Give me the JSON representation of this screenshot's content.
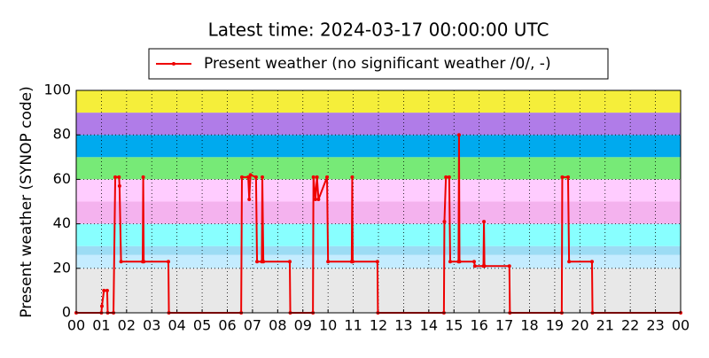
{
  "chart_data": {
    "type": "line",
    "title": "Latest time: 2024-03-17 00:00:00 UTC",
    "ylabel": "Present weather (SYNOP code)",
    "legend": "upper center",
    "grid": true,
    "xlim": [
      0,
      24
    ],
    "ylim": [
      0,
      100
    ],
    "xticks": [
      {
        "value": 0,
        "label": "00"
      },
      {
        "value": 1,
        "label": "01"
      },
      {
        "value": 2,
        "label": "02"
      },
      {
        "value": 3,
        "label": "03"
      },
      {
        "value": 4,
        "label": "04"
      },
      {
        "value": 5,
        "label": "05"
      },
      {
        "value": 6,
        "label": "06"
      },
      {
        "value": 7,
        "label": "07"
      },
      {
        "value": 8,
        "label": "08"
      },
      {
        "value": 9,
        "label": "09"
      },
      {
        "value": 10,
        "label": "10"
      },
      {
        "value": 11,
        "label": "11"
      },
      {
        "value": 12,
        "label": "12"
      },
      {
        "value": 13,
        "label": "13"
      },
      {
        "value": 14,
        "label": "14"
      },
      {
        "value": 15,
        "label": "15"
      },
      {
        "value": 16,
        "label": "16"
      },
      {
        "value": 17,
        "label": "17"
      },
      {
        "value": 18,
        "label": "18"
      },
      {
        "value": 19,
        "label": "19"
      },
      {
        "value": 20,
        "label": "20"
      },
      {
        "value": 21,
        "label": "21"
      },
      {
        "value": 22,
        "label": "22"
      },
      {
        "value": 23,
        "label": "23"
      },
      {
        "value": 24,
        "label": "00"
      }
    ],
    "yticks": [
      0,
      20,
      40,
      60,
      80,
      100
    ],
    "bands": [
      {
        "from": 0,
        "to": 20,
        "color": "#e8e8e8"
      },
      {
        "from": 20,
        "to": 26,
        "color": "#c4ecff"
      },
      {
        "from": 26,
        "to": 30,
        "color": "#9cdcf4"
      },
      {
        "from": 30,
        "to": 40,
        "color": "#88ffff"
      },
      {
        "from": 40,
        "to": 50,
        "color": "#f4b2ee"
      },
      {
        "from": 50,
        "to": 60,
        "color": "#ffccff"
      },
      {
        "from": 60,
        "to": 70,
        "color": "#77ea77"
      },
      {
        "from": 70,
        "to": 80,
        "color": "#00aaee"
      },
      {
        "from": 80,
        "to": 90,
        "color": "#b07ce8"
      },
      {
        "from": 90,
        "to": 100,
        "color": "#f5ee3a"
      }
    ],
    "series": [
      {
        "name": "Present weather (no significant weather /0/, -)",
        "color": "#ee0000",
        "x": [
          0,
          1.0,
          1.02,
          1.1,
          1.23,
          1.25,
          1.48,
          1.55,
          1.7,
          1.72,
          1.78,
          2.64,
          2.66,
          2.68,
          3.66,
          3.68,
          6.55,
          6.58,
          6.83,
          6.87,
          6.92,
          7.14,
          7.18,
          7.37,
          7.39,
          7.43,
          8.48,
          8.5,
          9.4,
          9.42,
          9.5,
          9.56,
          9.62,
          9.96,
          10.0,
          10.94,
          10.96,
          10.98,
          11.96,
          11.98,
          14.6,
          14.62,
          14.68,
          14.81,
          14.85,
          15.18,
          15.2,
          15.22,
          15.8,
          15.83,
          16.17,
          16.19,
          16.21,
          17.2,
          17.22,
          19.28,
          19.3,
          19.53,
          19.57,
          20.48,
          20.5,
          24
        ],
        "values": [
          0,
          0,
          3,
          10,
          10,
          0,
          0,
          61,
          61,
          57,
          23,
          23,
          61,
          23,
          23,
          0,
          0,
          61,
          61,
          51,
          62,
          61,
          23,
          23,
          61,
          23,
          23,
          0,
          0,
          61,
          51,
          61,
          51,
          61,
          23,
          23,
          61,
          23,
          23,
          0,
          0,
          41,
          61,
          61,
          23,
          23,
          80,
          23,
          23,
          21,
          21,
          41,
          21,
          21,
          0,
          0,
          61,
          61,
          23,
          23,
          0,
          0
        ]
      }
    ]
  }
}
